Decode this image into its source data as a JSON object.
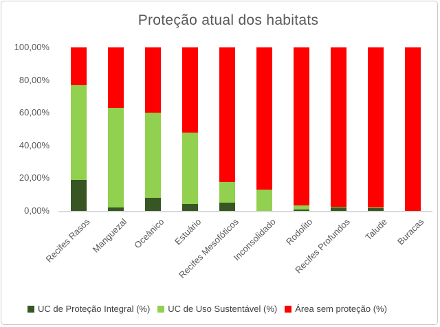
{
  "chart_data": {
    "type": "bar",
    "stacked": true,
    "title": "Proteção atual dos habitats",
    "categories": [
      "Recifes Rasos",
      "Manguezal",
      "Oceânico",
      "Estuário",
      "Recifes Mesofóticos",
      "Inconsolidado",
      "Rodolito",
      "Recifes Profundos",
      "Talude",
      "Buracas"
    ],
    "series": [
      {
        "name": "UC de Proteção Integral (%)",
        "color": "#375623",
        "values": [
          19,
          2,
          8,
          4,
          5,
          0,
          1,
          2,
          1.5,
          0
        ]
      },
      {
        "name": "UC de Uso Sustentável (%)",
        "color": "#92D050",
        "values": [
          58,
          61,
          52,
          44,
          12.5,
          13,
          2.5,
          0.5,
          0.5,
          0
        ]
      },
      {
        "name": "Área sem proteção (%)",
        "color": "#FF0000",
        "values": [
          23,
          37,
          40,
          52,
          82.5,
          87,
          96.5,
          97.5,
          98,
          100
        ]
      }
    ],
    "y_axis": {
      "min": 0,
      "max": 100,
      "ticks": [
        {
          "value": 0,
          "label": "0,00%"
        },
        {
          "value": 20,
          "label": "20,00%"
        },
        {
          "value": 40,
          "label": "40,00%"
        },
        {
          "value": 60,
          "label": "60,00%"
        },
        {
          "value": 80,
          "label": "80,00%"
        },
        {
          "value": 100,
          "label": "100,00%"
        }
      ]
    },
    "grid": false,
    "legend_position": "bottom"
  },
  "colors": {
    "background": "#FFFFFF",
    "border": "#C9C9C9",
    "axis_line": "#D9D9D9",
    "title_text": "#595959",
    "axis_text": "#595959",
    "legend_text": "#404040"
  }
}
